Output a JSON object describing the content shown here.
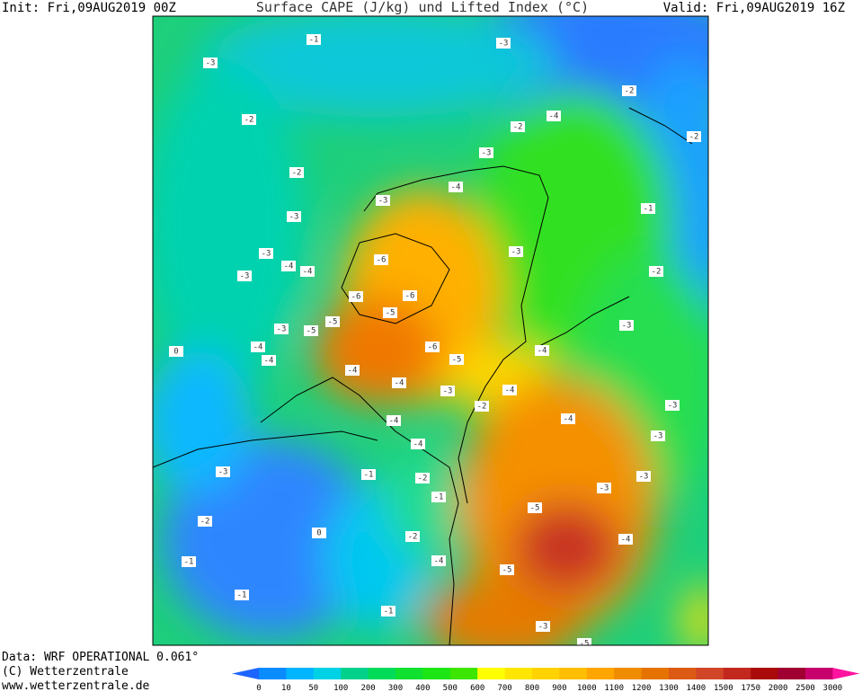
{
  "header": {
    "init": "Init: Fri,09AUG2019 00Z",
    "title": "Surface CAPE (J/kg) und Lifted Index (°C)",
    "valid": "Valid: Fri,09AUG2019 16Z"
  },
  "footer": {
    "data": "Data: WRF OPERATIONAL 0.061°",
    "copyright": "(C) Wetterzentrale",
    "url": "www.wetterzentrale.de"
  },
  "colorbar": {
    "ticks": [
      0,
      10,
      50,
      100,
      200,
      300,
      400,
      500,
      600,
      700,
      800,
      900,
      1000,
      1100,
      1200,
      1300,
      1400,
      1500,
      1750,
      2000,
      2500,
      3000
    ],
    "colors": [
      "#1e64ff",
      "#0a8cff",
      "#00b4ff",
      "#00d2e6",
      "#00d28c",
      "#00dc5a",
      "#10e030",
      "#1ee614",
      "#3ce600",
      "#ffff00",
      "#ffe600",
      "#ffd200",
      "#ffbe00",
      "#ffa500",
      "#f08c00",
      "#e67300",
      "#dc5a14",
      "#d24628",
      "#c3281e",
      "#aa0a0a",
      "#a00032",
      "#c8006e",
      "#ff14a0"
    ]
  },
  "lifted_index_labels": [
    -1,
    -3,
    -3,
    -2,
    -4,
    -2,
    -2,
    -2,
    -3,
    -2,
    -4,
    -3,
    -1,
    -3,
    -3,
    -3,
    -4,
    -4,
    -2,
    -3,
    -6,
    -6,
    -6,
    -5,
    -5,
    -3,
    -3,
    -5,
    -6,
    -4,
    -4,
    0,
    -5,
    -4,
    -4,
    -4,
    -3,
    -4,
    -3,
    -2,
    -4,
    -4,
    -3,
    -4,
    -3,
    -1,
    -3,
    -2,
    -3,
    -1,
    -5,
    -2,
    0,
    -2,
    -4,
    -1,
    -4,
    -5,
    -1,
    -1,
    -3,
    -5
  ]
}
